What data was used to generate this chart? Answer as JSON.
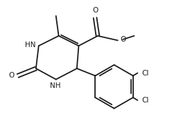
{
  "background": "#ffffff",
  "line_color": "#1a1a1a",
  "line_width": 1.3,
  "font_size": 7.5,
  "figsize": [
    2.61,
    1.98
  ],
  "dpi": 100,
  "xlim": [
    0,
    9.5
  ],
  "ylim": [
    0,
    7.5
  ]
}
